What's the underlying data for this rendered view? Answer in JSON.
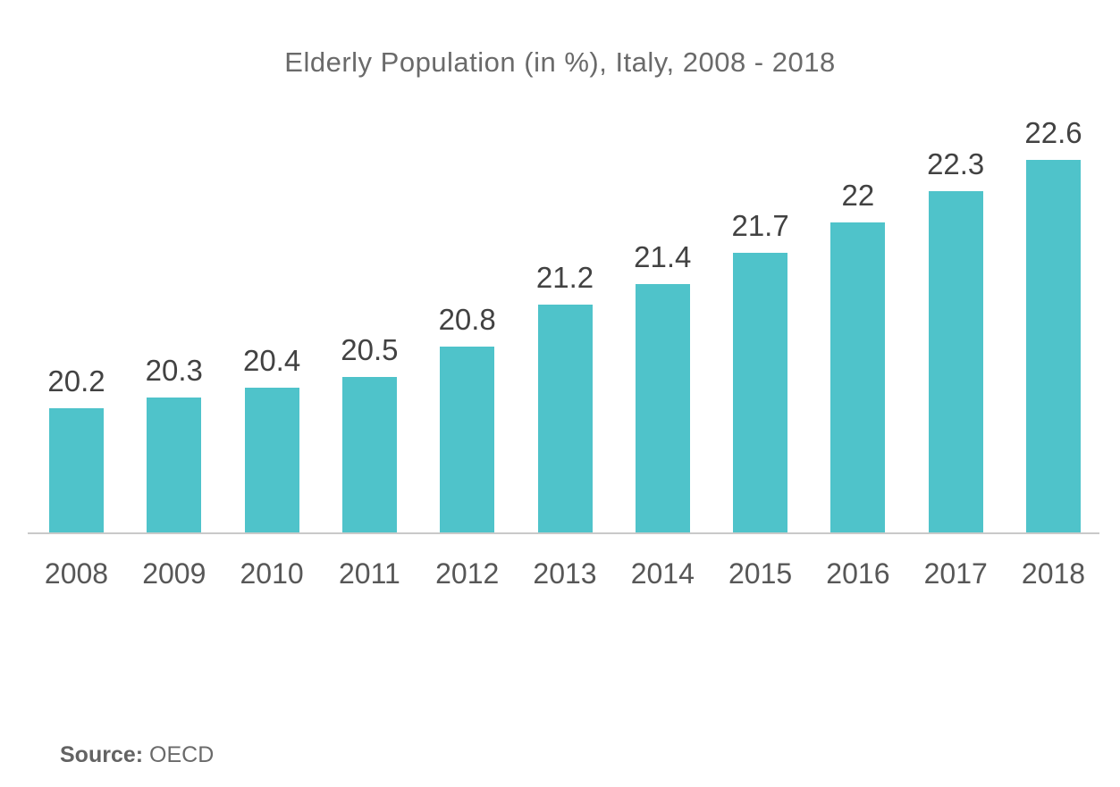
{
  "title": "Elderly Population (in %), Italy, 2008 - 2018",
  "source": {
    "label": "Source:",
    "value": " OECD"
  },
  "colors": {
    "bar": "#4fc3ca",
    "title_text": "#6a6a6a",
    "value_label_text": "#424242",
    "year_label_text": "#575757",
    "axis_line": "#c9c9c9",
    "background": "#ffffff",
    "source_text": "#666666"
  },
  "chart_data": {
    "type": "bar",
    "title": "Elderly Population (in %), Italy, 2008 - 2018",
    "categories": [
      "2008",
      "2009",
      "2010",
      "2011",
      "2012",
      "2013",
      "2014",
      "2015",
      "2016",
      "2017",
      "2018"
    ],
    "values": [
      20.2,
      20.3,
      20.4,
      20.5,
      20.8,
      21.2,
      21.4,
      21.7,
      22,
      22.3,
      22.6
    ],
    "value_labels": [
      "20.2",
      "20.3",
      "20.4",
      "20.5",
      "20.8",
      "21.2",
      "21.4",
      "21.7",
      "22",
      "22.3",
      "22.6"
    ],
    "xlabel": "",
    "ylabel": "",
    "ylim": [
      19,
      22.9
    ],
    "grid": false,
    "legend": false,
    "bar_labels_position": "above",
    "source": "Source: OECD"
  }
}
